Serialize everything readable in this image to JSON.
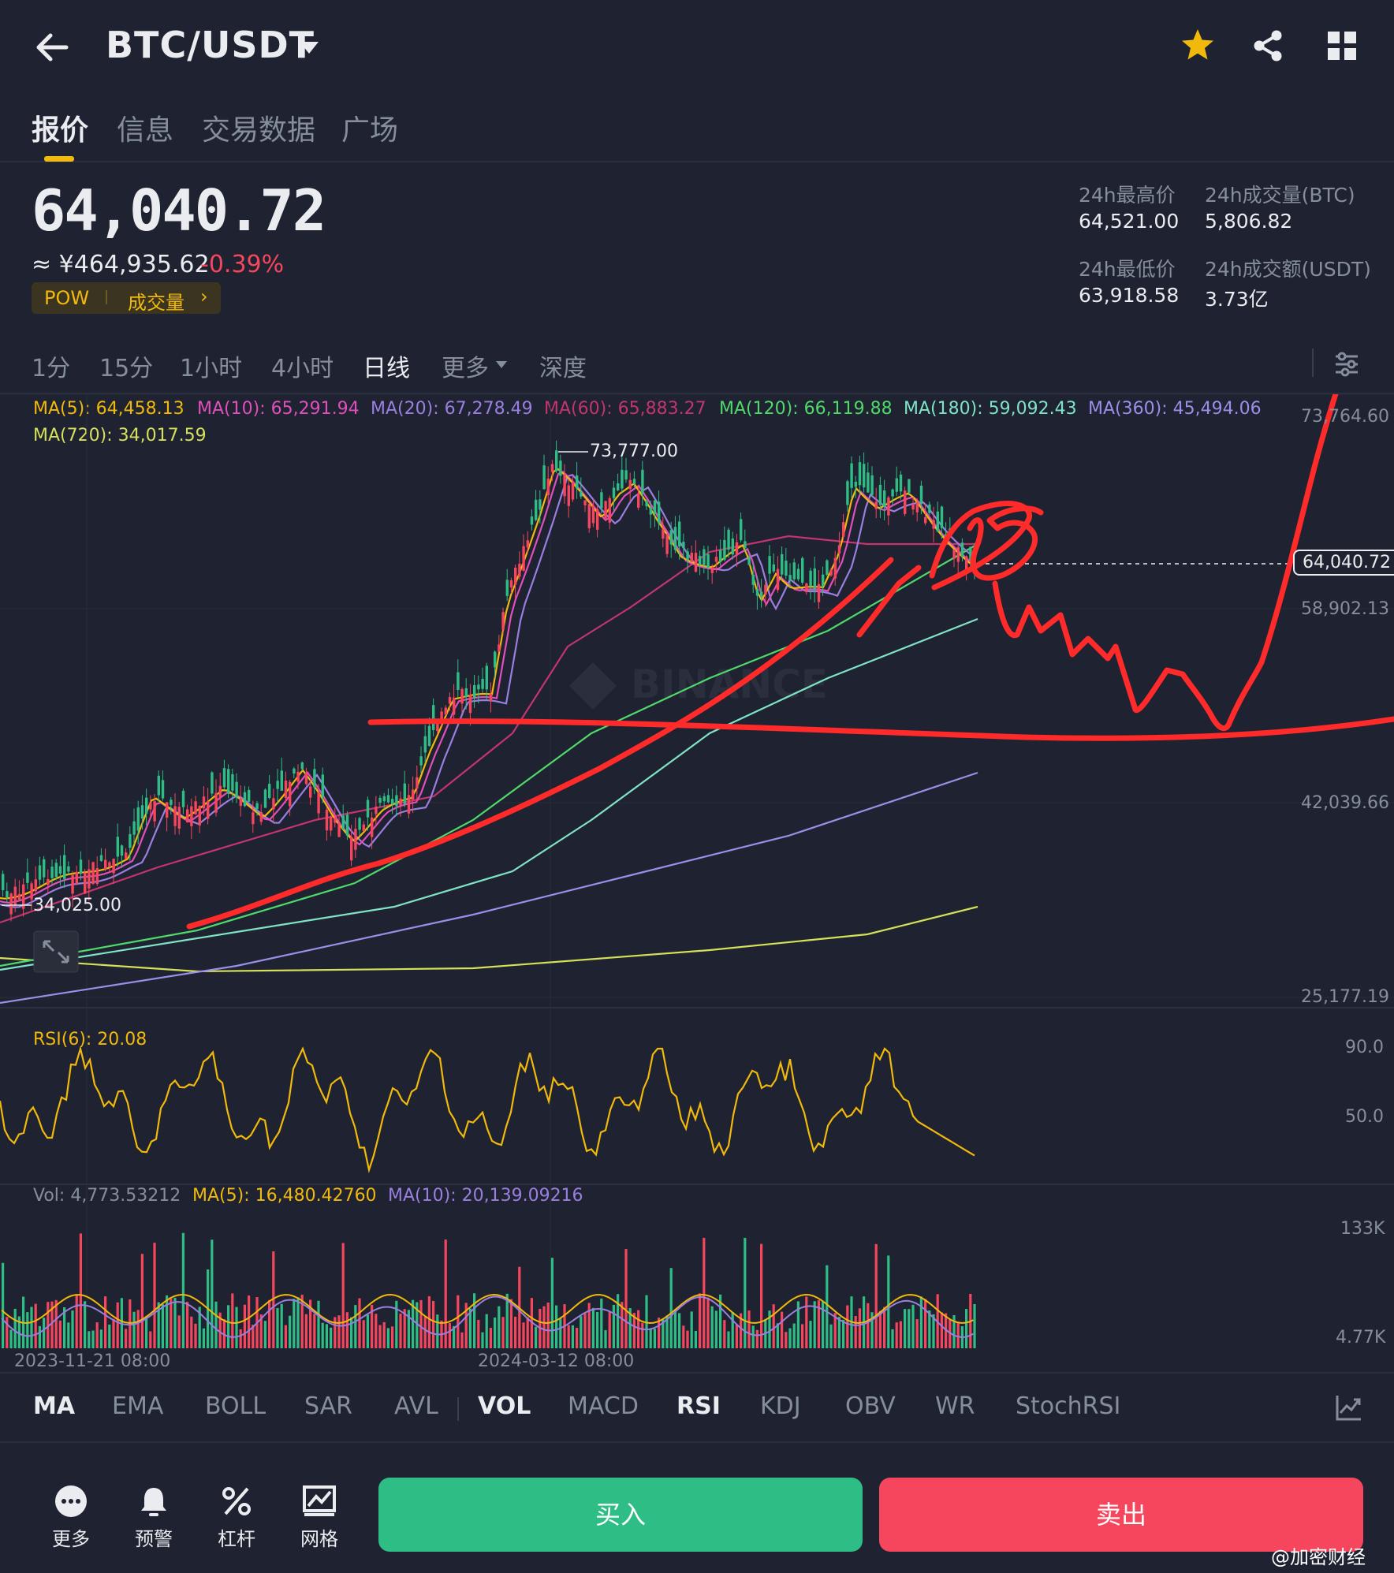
{
  "header": {
    "pair": "BTC/USDT"
  },
  "tabs": [
    "报价",
    "信息",
    "交易数据",
    "广场"
  ],
  "price": {
    "last": "64,040.72",
    "cny": "≈ ¥464,935.62",
    "change_pct": "-0.39%",
    "tag_pow": "POW",
    "tag_volume": "成交量",
    "tag_arrow": "›"
  },
  "stats": {
    "high_label": "24h最高价",
    "high_value": "64,521.00",
    "vol_btc_label": "24h成交量(BTC)",
    "vol_btc_value": "5,806.82",
    "low_label": "24h最低价",
    "low_value": "63,918.58",
    "vol_usdt_label": "24h成交额(USDT)",
    "vol_usdt_value": "3.73亿"
  },
  "intervals": [
    "1分",
    "15分",
    "1小时",
    "4小时",
    "日线",
    "更多",
    "深度"
  ],
  "ma_legend": {
    "ma5": "MA(5): 64,458.13",
    "ma10": "MA(10): 65,291.94",
    "ma20": "MA(20): 67,278.49",
    "ma60": "MA(60): 65,883.27",
    "ma120": "MA(120): 66,119.88",
    "ma180": "MA(180): 59,092.43",
    "ma360": "MA(360): 45,494.06",
    "ma720": "MA(720): 34,017.59"
  },
  "colors": {
    "ma5": "#f0b90b",
    "ma10": "#e04fbc",
    "ma20": "#9a7fe0",
    "ma60": "#c2356f",
    "ma120": "#4fd96a",
    "ma180": "#7fe3c6",
    "ma360": "#9a8fe8",
    "ma720": "#d6e05a",
    "up": "#2ebd85",
    "down": "#f6465d",
    "accent": "#f0b90b"
  },
  "chart": {
    "y_axis": [
      "73,764.60",
      "58,902.13",
      "42,039.66",
      "25,177.19"
    ],
    "current_price_tag": "64,040.72",
    "high_marker": "73,777.00",
    "low_marker": "34,025.00",
    "watermark": "BINANCE",
    "rsi_label": "RSI(6): 20.08",
    "rsi_axis": [
      "90.0",
      "50.0"
    ],
    "vol_label": "Vol: 4,773.53212",
    "vol_ma5": "MA(5): 16,480.42760",
    "vol_ma10": "MA(10): 20,139.09216",
    "vol_axis": [
      "133K",
      "4.77K"
    ],
    "dates": [
      "2023-11-21 08:00",
      "2024-03-12 08:00"
    ]
  },
  "indicators": [
    "MA",
    "EMA",
    "BOLL",
    "SAR",
    "AVL",
    "VOL",
    "MACD",
    "RSI",
    "KDJ",
    "OBV",
    "WR",
    "StochRSI"
  ],
  "bottom_nav": [
    "更多",
    "预警",
    "杠杆",
    "网格"
  ],
  "buttons": {
    "buy": "买入",
    "sell": "卖出"
  },
  "credit": "@加密财经"
}
